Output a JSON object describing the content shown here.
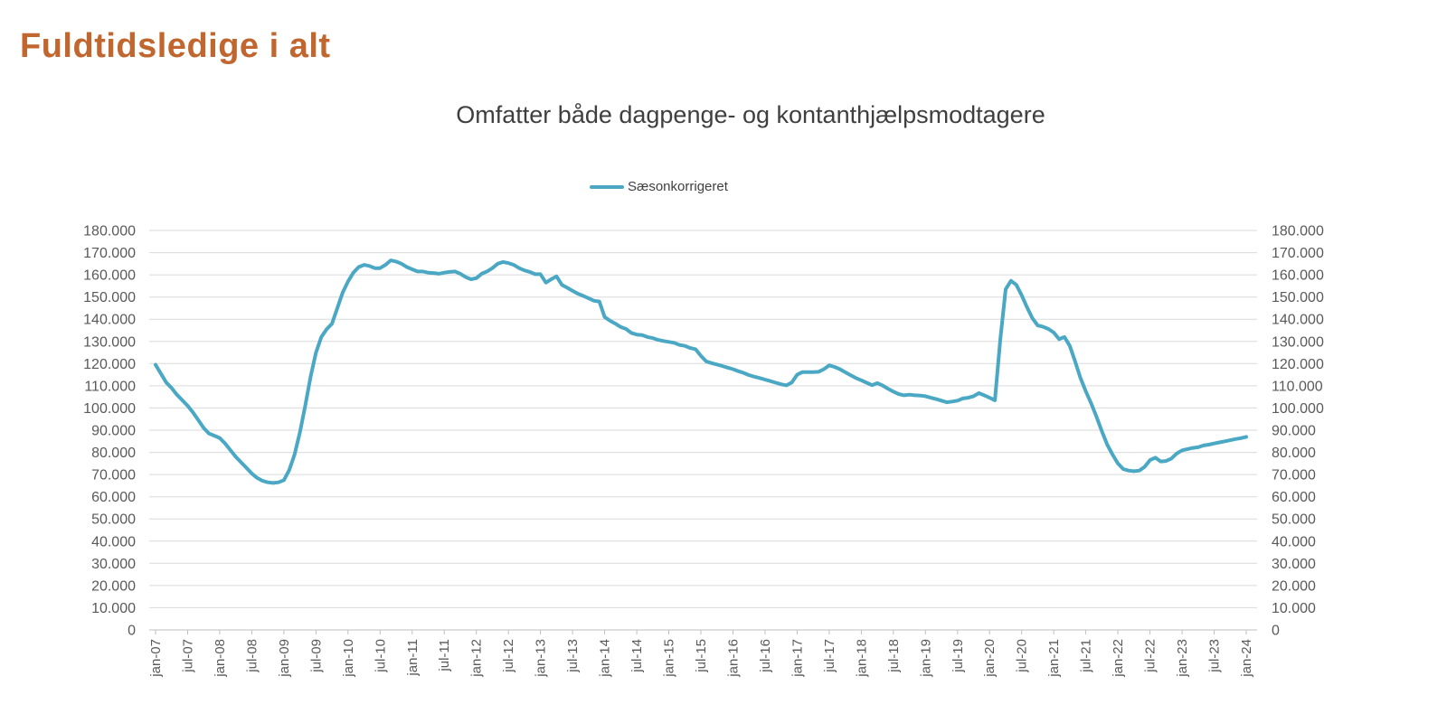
{
  "page": {
    "title": "Fuldtidsledige i alt"
  },
  "colors": {
    "title": "#C0662E",
    "line": "#4AA8C5",
    "axis_label": "#595959",
    "gridline": "#DADADA",
    "axis_line": "#BFBFBF"
  },
  "chart_data": {
    "type": "line",
    "title": "Omfatter både dagpenge- og kontanthjælpsmodtagere",
    "grid": "horizontal",
    "legend_position": "top-center",
    "dual_y_axis": true,
    "ylim": [
      0,
      180000
    ],
    "y_ticks": [
      0,
      10000,
      20000,
      30000,
      40000,
      50000,
      60000,
      70000,
      80000,
      90000,
      100000,
      110000,
      120000,
      130000,
      140000,
      150000,
      160000,
      170000,
      180000
    ],
    "y_tick_labels": [
      "0",
      "10.000",
      "20.000",
      "30.000",
      "40.000",
      "50.000",
      "60.000",
      "70.000",
      "80.000",
      "90.000",
      "100.000",
      "110.000",
      "120.000",
      "130.000",
      "140.000",
      "150.000",
      "160.000",
      "170.000",
      "180.000"
    ],
    "x_start": "jan-07",
    "x_end": "jan-24",
    "frequency": "monthly",
    "x_tick_labels": [
      "jan-07",
      "jul-07",
      "jan-08",
      "jul-08",
      "jan-09",
      "jul-09",
      "jan-10",
      "jul-10",
      "jan-11",
      "jul-11",
      "jan-12",
      "jul-12",
      "jan-13",
      "jul-13",
      "jan-14",
      "jul-14",
      "jan-15",
      "jul-15",
      "jan-16",
      "jul-16",
      "jan-17",
      "jul-17",
      "jan-18",
      "jul-18",
      "jan-19",
      "jul-19",
      "jan-20",
      "jul-20",
      "jan-21",
      "jul-21",
      "jan-22",
      "jul-22",
      "jan-23",
      "jul-23",
      "jan-24"
    ],
    "x_tick_every_n_points": 6,
    "series": [
      {
        "name": "Sæsonkorrigeret",
        "color": "#4AA8C5",
        "values": [
          119500,
          115500,
          111500,
          109000,
          106000,
          103500,
          101000,
          98000,
          94500,
          91000,
          88500,
          87500,
          86500,
          84000,
          81000,
          78000,
          75500,
          73000,
          70500,
          68500,
          67200,
          66500,
          66200,
          66500,
          67500,
          72000,
          79000,
          89000,
          101000,
          114000,
          125000,
          132000,
          135500,
          138000,
          145000,
          152000,
          157000,
          161000,
          163500,
          164500,
          164000,
          163000,
          163000,
          164500,
          166500,
          166000,
          165000,
          163500,
          162500,
          161500,
          161500,
          161000,
          160800,
          160500,
          161000,
          161300,
          161500,
          160500,
          159000,
          158000,
          158500,
          160500,
          161500,
          163000,
          165000,
          165800,
          165300,
          164500,
          163000,
          162000,
          161300,
          160300,
          160300,
          156500,
          158000,
          159300,
          155500,
          154200,
          152800,
          151500,
          150500,
          149400,
          148300,
          148000,
          141000,
          139300,
          138000,
          136500,
          135600,
          133800,
          133100,
          132900,
          132000,
          131500,
          130700,
          130200,
          129800,
          129400,
          128400,
          128000,
          127000,
          126500,
          123500,
          121000,
          120200,
          119600,
          118900,
          118200,
          117500,
          116600,
          115800,
          114800,
          114100,
          113500,
          112800,
          112100,
          111400,
          110700,
          110200,
          111500,
          115000,
          116200,
          116200,
          116200,
          116300,
          117500,
          119200,
          118500,
          117500,
          116100,
          114800,
          113500,
          112500,
          111400,
          110300,
          111200,
          110100,
          108700,
          107400,
          106300,
          105700,
          106000,
          105700,
          105600,
          105300,
          104600,
          104000,
          103300,
          102600,
          102900,
          103300,
          104300,
          104600,
          105300,
          106700,
          105700,
          104600,
          103500,
          131000,
          153500,
          157300,
          155500,
          150800,
          145400,
          140500,
          137200,
          136600,
          135600,
          134000,
          131000,
          132000,
          128000,
          121000,
          113500,
          107500,
          102000,
          96000,
          89500,
          83500,
          79000,
          75000,
          72500,
          71800,
          71500,
          71800,
          73500,
          76500,
          77600,
          75900,
          76100,
          77200,
          79500,
          80900,
          81500,
          82000,
          82300,
          83100,
          83500,
          84000,
          84500,
          85000,
          85500,
          86000,
          86400,
          87000
        ]
      }
    ]
  }
}
